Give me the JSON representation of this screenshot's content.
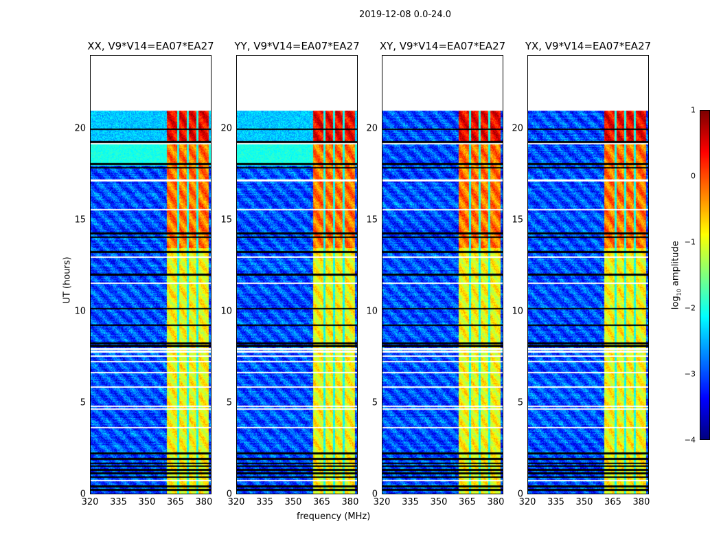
{
  "suptitle": "2019-12-08 0.0-24.0",
  "chart_data": {
    "type": "heatmap",
    "xlabel": "frequency (MHz)",
    "ylabel": "UT (hours)",
    "xlim": [
      320,
      384
    ],
    "ylim": [
      0,
      24
    ],
    "xticks": [
      "320",
      "335",
      "350",
      "365",
      "380"
    ],
    "yticks": [
      "0",
      "5",
      "10",
      "15",
      "20"
    ],
    "data_time_range_hours": [
      0,
      21
    ],
    "bright_band_mhz": [
      360,
      382
    ],
    "panels": [
      {
        "title": "XX, V9*V14=EA07*EA27"
      },
      {
        "title": "YY, V9*V14=EA07*EA27"
      },
      {
        "title": "XY, V9*V14=EA07*EA27"
      },
      {
        "title": "YX, V9*V14=EA07*EA27"
      }
    ],
    "colorbar": {
      "label_prefix": "log",
      "label_sub": "10",
      "label_suffix": " amplitude",
      "ticks": [
        "1",
        "0",
        "−1",
        "−2",
        "−3",
        "−4"
      ],
      "range": [
        -4,
        1
      ],
      "colormap": "jet"
    }
  }
}
